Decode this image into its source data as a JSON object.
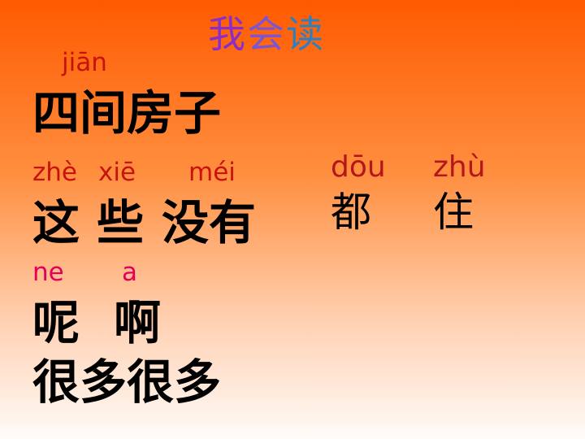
{
  "title": {
    "chars": [
      "我",
      "会",
      "读"
    ]
  },
  "colors": {
    "title": [
      "#8a2ec8",
      "#7c55d2",
      "#2f7fbf"
    ],
    "pinyin_orange": "#c8130c",
    "pinyin_pink": "#e2005a",
    "pinyin_right": "#b5161a"
  },
  "rows": {
    "row1": {
      "pinyin": "jiān",
      "hanzi": "四间房子"
    },
    "row2": {
      "pinyin": [
        "zhè",
        "xiē",
        "méi"
      ],
      "hanzi": [
        "这",
        "些",
        "没有"
      ]
    },
    "row3": {
      "pinyin": [
        "ne",
        "a"
      ],
      "hanzi": [
        "呢",
        "啊"
      ]
    },
    "row4": {
      "hanzi": "很多很多"
    }
  },
  "right": {
    "items": [
      {
        "pinyin": "dōu",
        "hanzi": "都"
      },
      {
        "pinyin": "zhù",
        "hanzi": "住"
      }
    ]
  }
}
